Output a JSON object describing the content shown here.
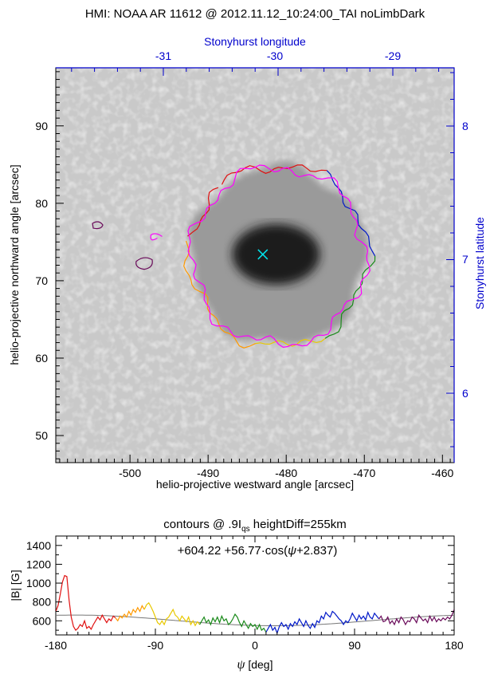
{
  "title": "HMI: NOAA AR 11612 @ 2012.11.12_10:24:00_TAI noLimbDark",
  "colors": {
    "stonyhurst_axes": "#0000cc",
    "marker": "#00e5ee",
    "contour_magenta": "#ff00ff",
    "contour_red": "#e01010",
    "contour_blue": "#0018c8",
    "contour_green": "#1a8a1a",
    "contour_orange": "#ff9900",
    "contour_yellow": "#e8c800",
    "contour_purple": "#6a0a5a",
    "fit_line": "#777777"
  },
  "chart_data": [
    {
      "type": "heatmap",
      "description_kind": "sunspot continuum image with contours",
      "xlabel": "helio-projective westward angle [arcsec]",
      "ylabel": "helio-projective northward angle [arcsec]",
      "x_ticks": [
        -500,
        -490,
        -480,
        -470,
        -460
      ],
      "y_ticks": [
        50,
        60,
        70,
        80,
        90
      ],
      "xlim": [
        -509.5,
        -458.5
      ],
      "ylim": [
        46.5,
        97.5
      ],
      "top_axis": {
        "label": "Stonyhurst longitude",
        "ticks": [
          -31,
          -30,
          -29
        ]
      },
      "right_axis": {
        "label": "Stonyhurst latitude",
        "ticks": [
          6,
          7,
          8
        ]
      },
      "marker": {
        "x": -483,
        "y": 73.4
      },
      "umbra_center": {
        "x": -481.5,
        "y": 73.2
      },
      "penumbra_radius_arcsec": 11.2
    },
    {
      "type": "line",
      "title_parts": {
        "pre": "contours @ .9I",
        "sub": "qs",
        "post": " heightDiff=255km"
      },
      "equation_parts": {
        "a": "+604.22",
        "b": "+56.77",
        "cos": "cos(",
        "psi": "ψ",
        "tail": "+2.837)"
      },
      "xlabel_symbol": "ψ",
      "xlabel_unit": " [deg]",
      "ylabel": "|B|  [G]",
      "x_ticks": [
        -180,
        -90,
        0,
        90,
        180
      ],
      "y_ticks": [
        600,
        800,
        1000,
        1200,
        1400
      ],
      "xlim": [
        -180,
        180
      ],
      "ylim": [
        450,
        1500
      ],
      "fit": {
        "offset": 604.22,
        "amplitude": 56.77,
        "phase": 2.837
      },
      "series": [
        {
          "color": "#e01010",
          "x": [
            -180,
            -178,
            -176,
            -174,
            -172,
            -170,
            -168,
            -166,
            -164,
            -162,
            -160,
            -158,
            -156,
            -154,
            -152,
            -150,
            -148,
            -146,
            -144,
            -142,
            -140,
            -138,
            -136,
            -134,
            -132,
            -130,
            -128,
            -126
          ],
          "values": [
            700,
            760,
            880,
            1010,
            1080,
            1070,
            820,
            640,
            540,
            500,
            520,
            560,
            540,
            600,
            520,
            540,
            510,
            560,
            600,
            640,
            610,
            660,
            620,
            580,
            620,
            600,
            650,
            630
          ]
        },
        {
          "color": "#ff9900",
          "x": [
            -126,
            -124,
            -122,
            -120,
            -118,
            -116,
            -114,
            -112,
            -110,
            -108,
            -106,
            -104,
            -102,
            -100
          ],
          "values": [
            630,
            600,
            650,
            630,
            670,
            640,
            700,
            660,
            720,
            690,
            740,
            700,
            760,
            720
          ]
        },
        {
          "color": "#e8c800",
          "x": [
            -100,
            -98,
            -96,
            -94,
            -92,
            -90,
            -88,
            -86,
            -84,
            -82,
            -80,
            -78,
            -76,
            -74,
            -72,
            -70,
            -68,
            -66,
            -64,
            -62,
            -60,
            -58,
            -56,
            -54,
            -52,
            -50
          ],
          "values": [
            720,
            770,
            790,
            750,
            700,
            640,
            580,
            560,
            600,
            560,
            620,
            640,
            680,
            720,
            660,
            640,
            600,
            650,
            620,
            590,
            640,
            560,
            600,
            550,
            590,
            560
          ]
        },
        {
          "color": "#1a8a1a",
          "x": [
            -50,
            -48,
            -46,
            -44,
            -42,
            -40,
            -38,
            -36,
            -34,
            -32,
            -30,
            -28,
            -26,
            -24,
            -22,
            -20,
            -18,
            -16,
            -14,
            -12,
            -10,
            -8,
            -6,
            -4,
            -2,
            0,
            2,
            4,
            6,
            8,
            10
          ],
          "values": [
            560,
            600,
            640,
            580,
            610,
            560,
            630,
            590,
            640,
            580,
            650,
            600,
            620,
            560,
            580,
            620,
            670,
            640,
            580,
            540,
            600,
            560,
            520,
            570,
            540,
            560,
            510,
            560,
            500,
            520,
            480
          ]
        },
        {
          "color": "#0018c8",
          "x": [
            10,
            12,
            14,
            16,
            18,
            20,
            22,
            24,
            26,
            28,
            30,
            32,
            34,
            36,
            38,
            40,
            42,
            44,
            46,
            48,
            50,
            52,
            54,
            56,
            58,
            60,
            62,
            64,
            66,
            68,
            70,
            72,
            74,
            76,
            78,
            80,
            82,
            84,
            86,
            88,
            90,
            92,
            94,
            96,
            98,
            100,
            102,
            104,
            106,
            108,
            110,
            112
          ],
          "values": [
            480,
            520,
            560,
            500,
            530,
            470,
            540,
            580,
            540,
            560,
            510,
            570,
            540,
            590,
            560,
            620,
            580,
            540,
            600,
            550,
            520,
            570,
            530,
            600,
            580,
            650,
            620,
            690,
            660,
            640,
            700,
            680,
            650,
            620,
            600,
            560,
            600,
            580,
            620,
            680,
            640,
            600,
            660,
            620,
            650,
            610,
            690,
            640,
            620,
            680,
            650,
            620
          ]
        },
        {
          "color": "#6a0a5a",
          "x": [
            112,
            114,
            116,
            118,
            120,
            122,
            124,
            126,
            128,
            130,
            132,
            134,
            136,
            138,
            140,
            142,
            144,
            146,
            148,
            150,
            152,
            154,
            156,
            158,
            160,
            162,
            164,
            166,
            168,
            170,
            172,
            174,
            176,
            178,
            180
          ],
          "values": [
            620,
            650,
            590,
            600,
            640,
            570,
            600,
            560,
            620,
            580,
            640,
            610,
            560,
            600,
            590,
            640,
            620,
            580,
            660,
            630,
            600,
            620,
            580,
            650,
            600,
            640,
            590,
            620,
            600,
            630,
            610,
            640,
            620,
            660,
            720
          ]
        }
      ]
    }
  ]
}
